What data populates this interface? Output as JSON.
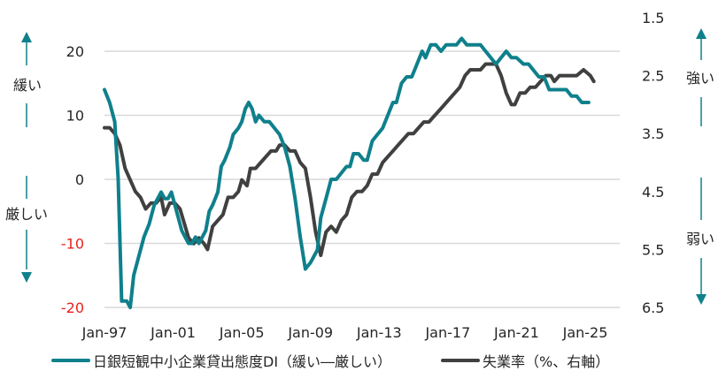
{
  "chart_data": {
    "type": "line",
    "title": "",
    "xlabel": "",
    "ylabel_left": "日銀短観中小企業貸出態度DI",
    "ylabel_right": "失業率（%）",
    "x_ticks": [
      "Jan-97",
      "Jan-01",
      "Jan-05",
      "Jan-09",
      "Jan-13",
      "Jan-17",
      "Jan-21",
      "Jan-25"
    ],
    "x_tick_years": [
      1997,
      2001,
      2005,
      2009,
      2013,
      2017,
      2021,
      2025
    ],
    "y_left": {
      "ticks": [
        20,
        10,
        0,
        -10,
        -20
      ],
      "range": [
        -20,
        20
      ],
      "negative_color": "#e8211c"
    },
    "y_right": {
      "ticks": [
        1.5,
        2.5,
        3.5,
        4.5,
        5.5,
        6.5
      ],
      "range": [
        1.5,
        6.5
      ],
      "inverted": true
    },
    "grid": true,
    "legend_position": "bottom",
    "annotations": {
      "left_up": "緩い",
      "left_down": "厳しい",
      "right_up": "強い",
      "right_down": "弱い"
    },
    "series": [
      {
        "name": "日銀短観中小企業貸出態度DI（緩い―厳しい）",
        "axis": "left",
        "color": "#0f808c",
        "points": [
          [
            1997.0,
            14
          ],
          [
            1997.3,
            12
          ],
          [
            1997.6,
            9
          ],
          [
            1997.8,
            0
          ],
          [
            1998.0,
            -19
          ],
          [
            1998.3,
            -19
          ],
          [
            1998.5,
            -20
          ],
          [
            1998.7,
            -15
          ],
          [
            1999.0,
            -12
          ],
          [
            1999.3,
            -9
          ],
          [
            1999.6,
            -7
          ],
          [
            1999.9,
            -4
          ],
          [
            2000.1,
            -3
          ],
          [
            2000.3,
            -2
          ],
          [
            2000.5,
            -3
          ],
          [
            2000.7,
            -3
          ],
          [
            2000.9,
            -2
          ],
          [
            2001.1,
            -4
          ],
          [
            2001.3,
            -6
          ],
          [
            2001.5,
            -8
          ],
          [
            2001.7,
            -9
          ],
          [
            2001.9,
            -10
          ],
          [
            2002.1,
            -10
          ],
          [
            2002.3,
            -9
          ],
          [
            2002.5,
            -10
          ],
          [
            2002.7,
            -9
          ],
          [
            2002.9,
            -8
          ],
          [
            2003.1,
            -5
          ],
          [
            2003.3,
            -4
          ],
          [
            2003.6,
            -2
          ],
          [
            2003.8,
            2
          ],
          [
            2004.0,
            3
          ],
          [
            2004.3,
            5
          ],
          [
            2004.5,
            7
          ],
          [
            2004.8,
            8
          ],
          [
            2005.0,
            9
          ],
          [
            2005.2,
            11
          ],
          [
            2005.4,
            12
          ],
          [
            2005.6,
            11
          ],
          [
            2005.8,
            9
          ],
          [
            2006.0,
            10
          ],
          [
            2006.3,
            9
          ],
          [
            2006.6,
            9
          ],
          [
            2006.9,
            8
          ],
          [
            2007.2,
            7
          ],
          [
            2007.5,
            5
          ],
          [
            2007.8,
            2
          ],
          [
            2008.1,
            -3
          ],
          [
            2008.4,
            -9
          ],
          [
            2008.7,
            -14
          ],
          [
            2009.0,
            -13
          ],
          [
            2009.4,
            -11
          ],
          [
            2009.6,
            -6
          ],
          [
            2009.9,
            -3
          ],
          [
            2010.2,
            0
          ],
          [
            2010.5,
            0
          ],
          [
            2010.8,
            1
          ],
          [
            2011.1,
            2
          ],
          [
            2011.3,
            2
          ],
          [
            2011.5,
            4
          ],
          [
            2011.8,
            4
          ],
          [
            2012.1,
            3
          ],
          [
            2012.3,
            3
          ],
          [
            2012.6,
            6
          ],
          [
            2012.9,
            7
          ],
          [
            2013.2,
            8
          ],
          [
            2013.5,
            10
          ],
          [
            2013.8,
            12
          ],
          [
            2014.0,
            12
          ],
          [
            2014.3,
            15
          ],
          [
            2014.6,
            16
          ],
          [
            2014.9,
            16
          ],
          [
            2015.2,
            18
          ],
          [
            2015.5,
            20
          ],
          [
            2015.7,
            19
          ],
          [
            2016.0,
            21
          ],
          [
            2016.3,
            21
          ],
          [
            2016.6,
            20
          ],
          [
            2016.9,
            21
          ],
          [
            2017.2,
            21
          ],
          [
            2017.5,
            21
          ],
          [
            2017.8,
            22
          ],
          [
            2018.1,
            21
          ],
          [
            2018.5,
            21
          ],
          [
            2018.9,
            21
          ],
          [
            2019.2,
            20
          ],
          [
            2019.5,
            19
          ],
          [
            2019.8,
            18
          ],
          [
            2020.1,
            19
          ],
          [
            2020.4,
            20
          ],
          [
            2020.7,
            19
          ],
          [
            2021.0,
            19
          ],
          [
            2021.4,
            18
          ],
          [
            2021.7,
            18
          ],
          [
            2022.0,
            17
          ],
          [
            2022.3,
            16
          ],
          [
            2022.6,
            16
          ],
          [
            2022.9,
            14
          ],
          [
            2023.2,
            14
          ],
          [
            2023.5,
            14
          ],
          [
            2023.9,
            14
          ],
          [
            2024.2,
            13
          ],
          [
            2024.5,
            13
          ],
          [
            2024.8,
            12
          ],
          [
            2025.2,
            12
          ]
        ]
      },
      {
        "name": "失業率（%、右軸）",
        "axis": "right",
        "color": "#404040",
        "points": [
          [
            1997.0,
            3.4
          ],
          [
            1997.3,
            3.4
          ],
          [
            1997.6,
            3.5
          ],
          [
            1997.9,
            3.7
          ],
          [
            1998.2,
            4.1
          ],
          [
            1998.5,
            4.3
          ],
          [
            1998.8,
            4.5
          ],
          [
            1999.1,
            4.6
          ],
          [
            1999.4,
            4.8
          ],
          [
            1999.7,
            4.7
          ],
          [
            2000.0,
            4.7
          ],
          [
            2000.3,
            4.6
          ],
          [
            2000.5,
            4.9
          ],
          [
            2000.8,
            4.7
          ],
          [
            2001.1,
            4.7
          ],
          [
            2001.4,
            4.8
          ],
          [
            2001.6,
            5.0
          ],
          [
            2001.9,
            5.3
          ],
          [
            2002.2,
            5.4
          ],
          [
            2002.5,
            5.3
          ],
          [
            2002.8,
            5.4
          ],
          [
            2003.0,
            5.5
          ],
          [
            2003.3,
            5.1
          ],
          [
            2003.6,
            5.0
          ],
          [
            2003.9,
            4.9
          ],
          [
            2004.2,
            4.6
          ],
          [
            2004.5,
            4.6
          ],
          [
            2004.8,
            4.5
          ],
          [
            2005.0,
            4.3
          ],
          [
            2005.3,
            4.4
          ],
          [
            2005.5,
            4.1
          ],
          [
            2005.8,
            4.1
          ],
          [
            2006.1,
            4.0
          ],
          [
            2006.4,
            3.9
          ],
          [
            2006.7,
            3.8
          ],
          [
            2007.0,
            3.8
          ],
          [
            2007.2,
            3.7
          ],
          [
            2007.5,
            3.7
          ],
          [
            2007.8,
            3.8
          ],
          [
            2008.1,
            3.8
          ],
          [
            2008.4,
            4.0
          ],
          [
            2008.7,
            4.1
          ],
          [
            2009.0,
            4.6
          ],
          [
            2009.3,
            5.2
          ],
          [
            2009.6,
            5.6
          ],
          [
            2009.9,
            5.2
          ],
          [
            2010.2,
            5.1
          ],
          [
            2010.5,
            5.2
          ],
          [
            2010.8,
            5.0
          ],
          [
            2011.1,
            4.9
          ],
          [
            2011.4,
            4.6
          ],
          [
            2011.7,
            4.5
          ],
          [
            2012.0,
            4.5
          ],
          [
            2012.3,
            4.4
          ],
          [
            2012.6,
            4.2
          ],
          [
            2012.9,
            4.2
          ],
          [
            2013.2,
            4.0
          ],
          [
            2013.5,
            3.9
          ],
          [
            2013.8,
            3.8
          ],
          [
            2014.1,
            3.7
          ],
          [
            2014.4,
            3.6
          ],
          [
            2014.7,
            3.5
          ],
          [
            2015.0,
            3.5
          ],
          [
            2015.3,
            3.4
          ],
          [
            2015.6,
            3.3
          ],
          [
            2015.9,
            3.3
          ],
          [
            2016.2,
            3.2
          ],
          [
            2016.5,
            3.1
          ],
          [
            2016.8,
            3.0
          ],
          [
            2017.1,
            2.9
          ],
          [
            2017.4,
            2.8
          ],
          [
            2017.7,
            2.7
          ],
          [
            2018.0,
            2.5
          ],
          [
            2018.3,
            2.4
          ],
          [
            2018.6,
            2.4
          ],
          [
            2018.9,
            2.4
          ],
          [
            2019.2,
            2.3
          ],
          [
            2019.5,
            2.3
          ],
          [
            2019.8,
            2.3
          ],
          [
            2020.1,
            2.5
          ],
          [
            2020.4,
            2.8
          ],
          [
            2020.7,
            3.0
          ],
          [
            2020.9,
            3.0
          ],
          [
            2021.2,
            2.8
          ],
          [
            2021.5,
            2.8
          ],
          [
            2021.8,
            2.7
          ],
          [
            2022.1,
            2.7
          ],
          [
            2022.4,
            2.6
          ],
          [
            2022.7,
            2.5
          ],
          [
            2023.0,
            2.5
          ],
          [
            2023.2,
            2.6
          ],
          [
            2023.5,
            2.5
          ],
          [
            2023.8,
            2.5
          ],
          [
            2024.1,
            2.5
          ],
          [
            2024.5,
            2.5
          ],
          [
            2024.9,
            2.4
          ],
          [
            2025.3,
            2.5
          ],
          [
            2025.5,
            2.6
          ]
        ]
      }
    ]
  },
  "legend": {
    "items": [
      {
        "label": "日銀短観中小企業貸出態度DI（緩い―厳しい）",
        "color": "#0f808c"
      },
      {
        "label": "失業率（%、右軸）",
        "color": "#404040"
      }
    ]
  },
  "colors": {
    "accent": "#0f808c",
    "unemployment": "#404040",
    "grid": "#d9d9d9",
    "negative_tick": "#e8211c"
  }
}
